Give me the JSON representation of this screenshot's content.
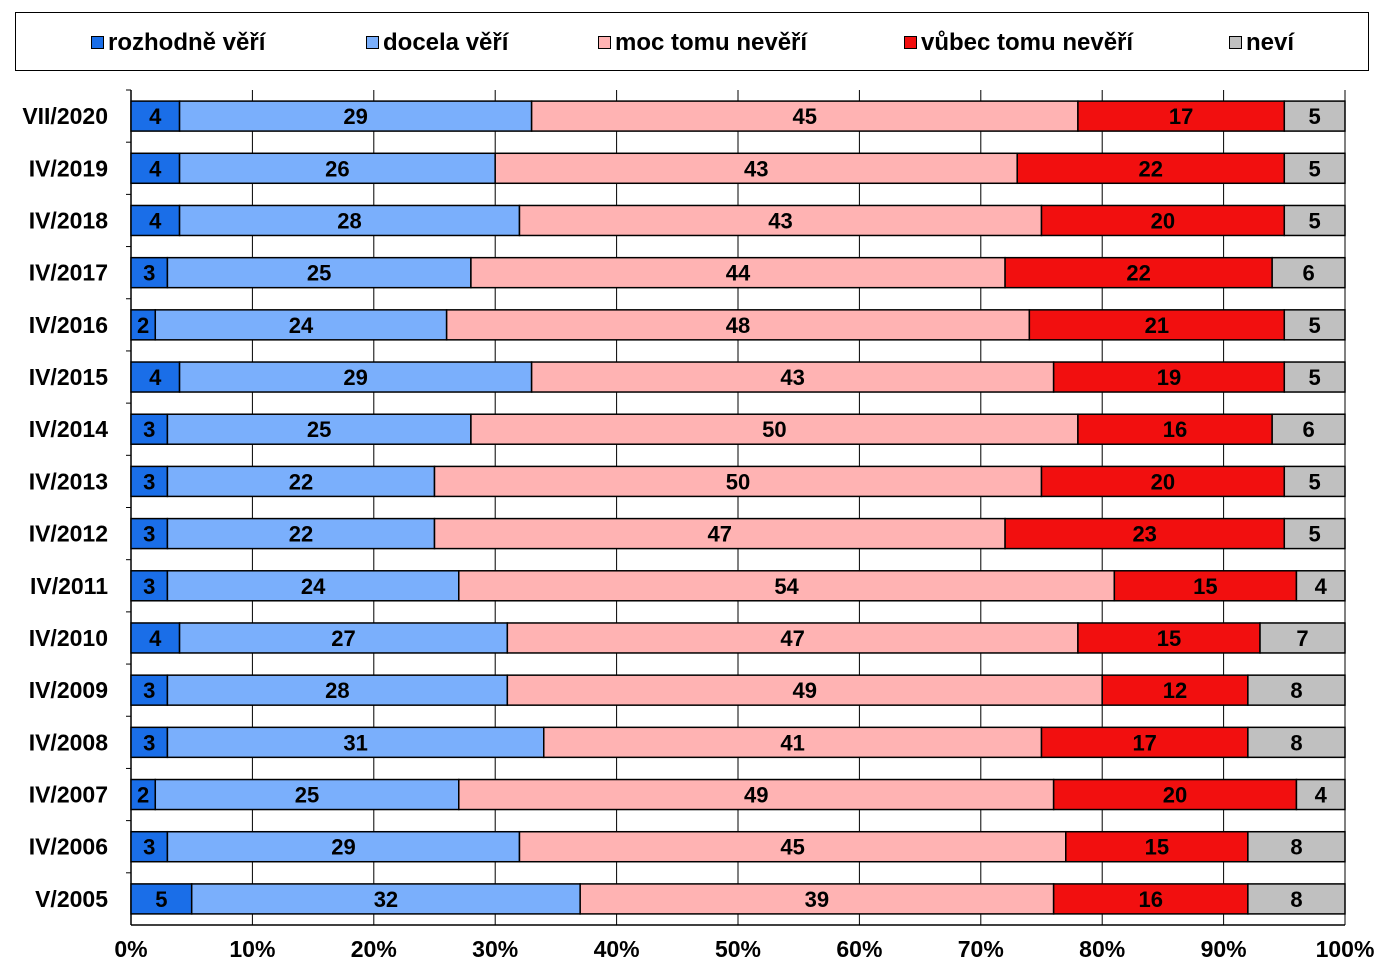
{
  "colors": {
    "rozhodne_veri": "#1a6ee8",
    "docela_veri": "#7aaffc",
    "moc_tomu_neveri": "#ffb3b3",
    "vubec_tomu_neveri": "#f20f0f",
    "nevi": "#c0c0c0"
  },
  "legend": {
    "items": [
      {
        "label": "rozhodně věří",
        "color": "#1a6ee8"
      },
      {
        "label": "docela věří",
        "color": "#7aaffc"
      },
      {
        "label": "moc tomu nevěří",
        "color": "#ffb3b3"
      },
      {
        "label": "vůbec tomu nevěří",
        "color": "#f20f0f"
      },
      {
        "label": "neví",
        "color": "#c0c0c0"
      }
    ]
  },
  "chart_data": {
    "type": "bar",
    "orientation": "horizontal",
    "stacked": "percent",
    "legend_position": "top",
    "grid": true,
    "xlim": [
      0,
      100
    ],
    "x_ticks": [
      "0%",
      "10%",
      "20%",
      "30%",
      "40%",
      "50%",
      "60%",
      "70%",
      "80%",
      "90%",
      "100%"
    ],
    "categories": [
      "VII/2020",
      "IV/2019",
      "IV/2018",
      "IV/2017",
      "IV/2016",
      "IV/2015",
      "IV/2014",
      "IV/2013",
      "IV/2012",
      "IV/2011",
      "IV/2010",
      "IV/2009",
      "IV/2008",
      "IV/2007",
      "IV/2006",
      "V/2005"
    ],
    "series": [
      {
        "name": "rozhodně věří",
        "color": "#1a6ee8",
        "values": [
          4,
          4,
          4,
          3,
          2,
          4,
          3,
          3,
          3,
          3,
          4,
          3,
          3,
          2,
          3,
          5
        ]
      },
      {
        "name": "docela věří",
        "color": "#7aaffc",
        "values": [
          29,
          26,
          28,
          25,
          24,
          29,
          25,
          22,
          22,
          24,
          27,
          28,
          31,
          25,
          29,
          32
        ]
      },
      {
        "name": "moc tomu nevěří",
        "color": "#ffb3b3",
        "values": [
          45,
          43,
          43,
          44,
          48,
          43,
          50,
          50,
          47,
          54,
          47,
          49,
          41,
          49,
          45,
          39
        ]
      },
      {
        "name": "vůbec tomu nevěří",
        "color": "#f20f0f",
        "values": [
          17,
          22,
          20,
          22,
          21,
          19,
          16,
          20,
          23,
          15,
          15,
          12,
          17,
          20,
          15,
          16
        ]
      },
      {
        "name": "neví",
        "color": "#c0c0c0",
        "values": [
          5,
          5,
          5,
          6,
          5,
          5,
          6,
          5,
          5,
          4,
          7,
          8,
          8,
          4,
          8,
          8
        ]
      }
    ]
  }
}
